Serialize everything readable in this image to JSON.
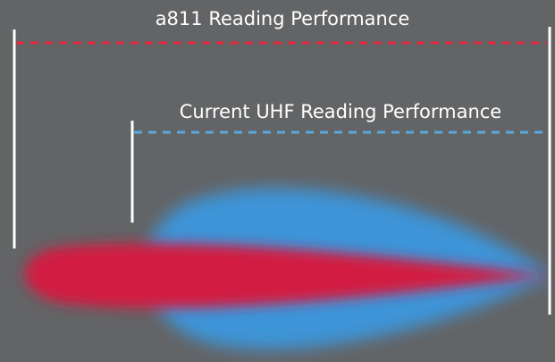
{
  "labels": {
    "a811": "a811 Reading Performance",
    "uhf": "Current UHF Reading Performance"
  }
}
